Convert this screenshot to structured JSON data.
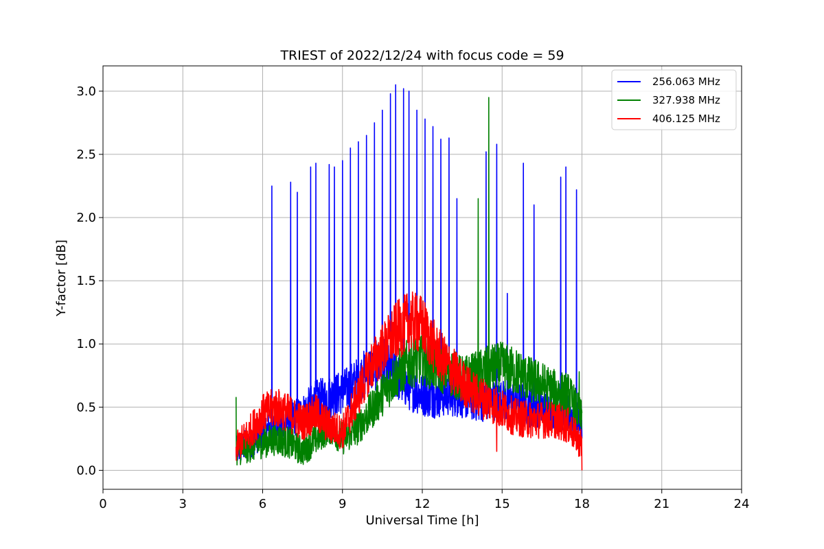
{
  "chart_data": {
    "type": "line",
    "title": "TRIEST of 2022/12/24 with focus code = 59",
    "xlabel": "Universal Time [h]",
    "ylabel": "Y-factor [dB]",
    "xlim": [
      0,
      24
    ],
    "ylim": [
      -0.15,
      3.2
    ],
    "xticks": [
      0,
      3,
      6,
      9,
      12,
      15,
      18,
      21,
      24
    ],
    "xtick_labels": [
      "0",
      "3",
      "6",
      "9",
      "12",
      "15",
      "18",
      "21",
      "24"
    ],
    "yticks": [
      0.0,
      0.5,
      1.0,
      1.5,
      2.0,
      2.5,
      3.0
    ],
    "ytick_labels": [
      "0.0",
      "0.5",
      "1.0",
      "1.5",
      "2.0",
      "2.5",
      "3.0"
    ],
    "grid": true,
    "legend_position": "top-right",
    "series": [
      {
        "name": "256.063 MHz",
        "color": "#0000ff",
        "x": [
          5.0,
          5.5,
          6.0,
          6.5,
          7.0,
          7.5,
          8.0,
          8.5,
          9.0,
          9.5,
          10.0,
          10.5,
          11.0,
          11.5,
          12.0,
          12.5,
          13.0,
          13.5,
          14.0,
          14.5,
          15.0,
          15.5,
          16.0,
          16.5,
          17.0,
          17.5,
          18.0
        ],
        "values": [
          0.15,
          0.22,
          0.3,
          0.35,
          0.4,
          0.45,
          0.55,
          0.58,
          0.62,
          0.7,
          0.8,
          0.85,
          0.75,
          0.65,
          0.6,
          0.58,
          0.6,
          0.58,
          0.55,
          0.55,
          0.55,
          0.55,
          0.5,
          0.5,
          0.48,
          0.45,
          0.4
        ],
        "spikes": [
          {
            "x": 6.35,
            "y": 2.25
          },
          {
            "x": 7.05,
            "y": 2.28
          },
          {
            "x": 7.3,
            "y": 2.2
          },
          {
            "x": 7.8,
            "y": 2.4
          },
          {
            "x": 8.0,
            "y": 2.43
          },
          {
            "x": 8.5,
            "y": 2.42
          },
          {
            "x": 8.7,
            "y": 2.4
          },
          {
            "x": 9.0,
            "y": 2.45
          },
          {
            "x": 9.3,
            "y": 2.55
          },
          {
            "x": 9.6,
            "y": 2.6
          },
          {
            "x": 9.9,
            "y": 2.65
          },
          {
            "x": 10.2,
            "y": 2.75
          },
          {
            "x": 10.5,
            "y": 2.85
          },
          {
            "x": 10.8,
            "y": 2.98
          },
          {
            "x": 11.0,
            "y": 3.05
          },
          {
            "x": 11.3,
            "y": 3.02
          },
          {
            "x": 11.5,
            "y": 3.0
          },
          {
            "x": 11.8,
            "y": 2.85
          },
          {
            "x": 12.1,
            "y": 2.78
          },
          {
            "x": 12.4,
            "y": 2.72
          },
          {
            "x": 12.7,
            "y": 2.62
          },
          {
            "x": 13.0,
            "y": 2.63
          },
          {
            "x": 13.3,
            "y": 2.15
          },
          {
            "x": 14.4,
            "y": 2.52
          },
          {
            "x": 14.8,
            "y": 2.58
          },
          {
            "x": 15.2,
            "y": 1.4
          },
          {
            "x": 15.8,
            "y": 2.43
          },
          {
            "x": 16.2,
            "y": 2.1
          },
          {
            "x": 17.2,
            "y": 2.32
          },
          {
            "x": 17.4,
            "y": 2.4
          },
          {
            "x": 17.8,
            "y": 2.22
          }
        ]
      },
      {
        "name": "327.938 MHz",
        "color": "#008000",
        "x": [
          5.0,
          5.5,
          6.0,
          6.5,
          7.0,
          7.5,
          8.0,
          8.5,
          9.0,
          9.5,
          10.0,
          10.5,
          11.0,
          11.5,
          12.0,
          12.5,
          13.0,
          13.5,
          14.0,
          14.5,
          15.0,
          15.5,
          16.0,
          16.5,
          17.0,
          17.5,
          18.0
        ],
        "values": [
          0.15,
          0.18,
          0.22,
          0.25,
          0.22,
          0.15,
          0.25,
          0.35,
          0.25,
          0.32,
          0.45,
          0.6,
          0.75,
          0.85,
          0.88,
          0.82,
          0.78,
          0.72,
          0.75,
          0.8,
          0.82,
          0.78,
          0.72,
          0.68,
          0.62,
          0.6,
          0.4
        ],
        "spikes": [
          {
            "x": 5.0,
            "y": 0.58
          },
          {
            "x": 14.1,
            "y": 2.15
          },
          {
            "x": 14.5,
            "y": 2.95
          },
          {
            "x": 17.9,
            "y": 0.78
          }
        ]
      },
      {
        "name": "406.125 MHz",
        "color": "#ff0000",
        "x": [
          5.0,
          5.5,
          6.0,
          6.5,
          7.0,
          7.5,
          8.0,
          8.5,
          9.0,
          9.5,
          10.0,
          10.5,
          11.0,
          11.5,
          12.0,
          12.5,
          13.0,
          13.5,
          14.0,
          14.5,
          15.0,
          15.5,
          16.0,
          16.5,
          17.0,
          17.5,
          18.0
        ],
        "values": [
          0.18,
          0.3,
          0.45,
          0.5,
          0.45,
          0.38,
          0.45,
          0.35,
          0.3,
          0.55,
          0.8,
          0.95,
          1.1,
          1.18,
          1.15,
          0.95,
          0.82,
          0.7,
          0.6,
          0.55,
          0.48,
          0.42,
          0.4,
          0.4,
          0.4,
          0.35,
          0.2
        ],
        "spikes": [
          {
            "x": 11.8,
            "y": 1.38
          },
          {
            "x": 14.8,
            "y": 0.15
          },
          {
            "x": 18.0,
            "y": 0.0
          }
        ]
      }
    ]
  }
}
